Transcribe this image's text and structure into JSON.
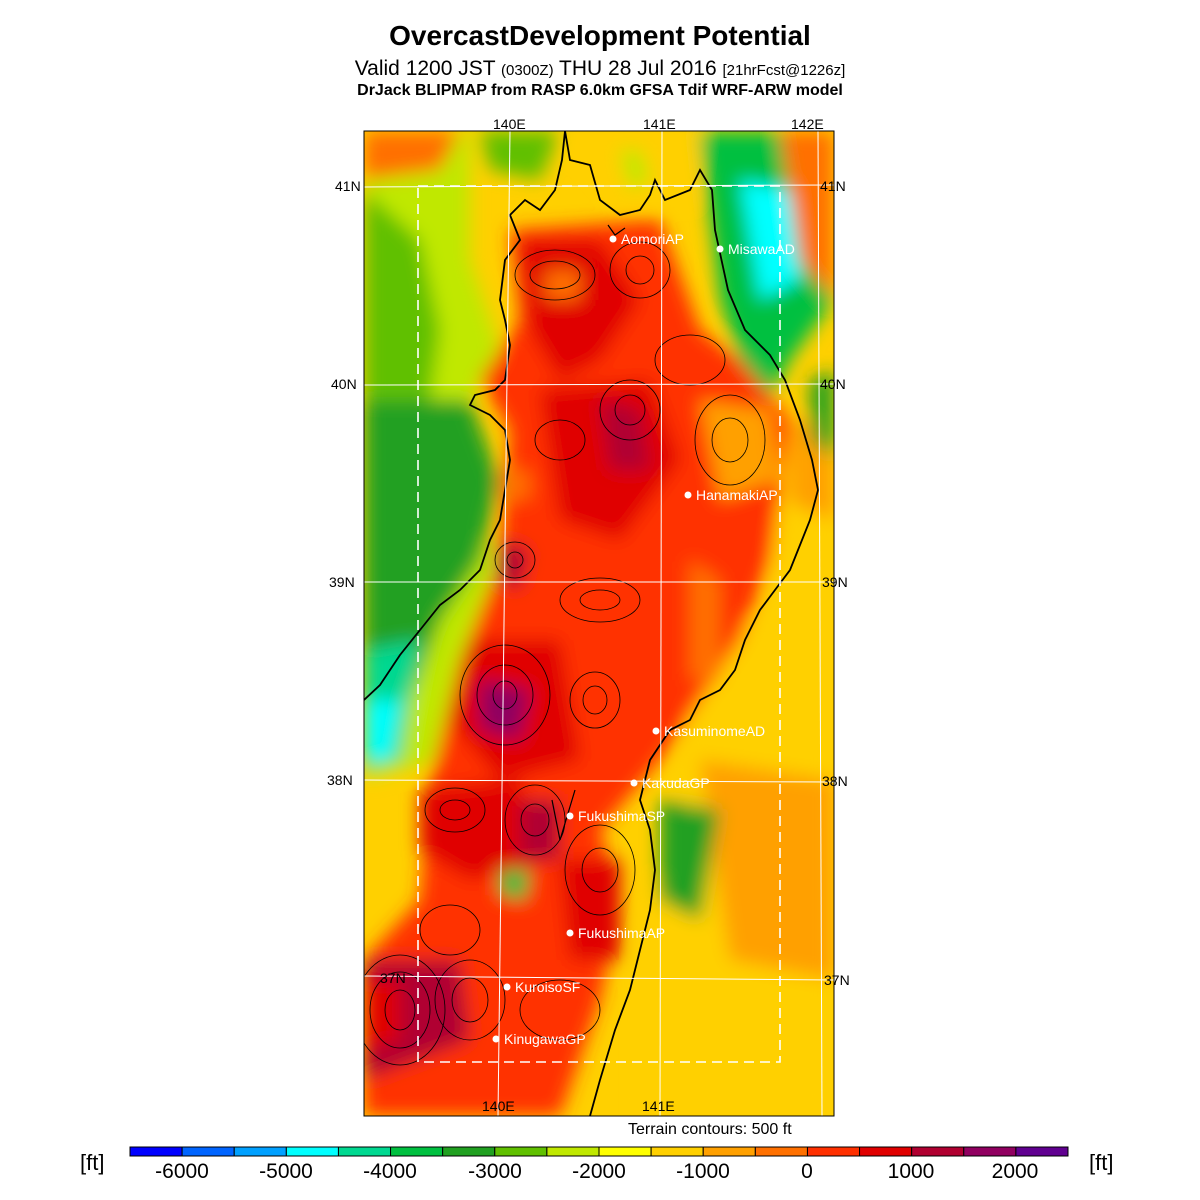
{
  "header": {
    "title": "OvercastDevelopment Potential",
    "valid_main": "Valid 1200 JST",
    "valid_utc": "(0300Z)",
    "valid_date": "THU 28 Jul 2016",
    "forecast_info": "[21hrFcst@1226z]",
    "model": "DrJack BLIPMAP from RASP 6.0km GFSA Tdif WRF-ARW model"
  },
  "map": {
    "lon_labels": [
      "140E",
      "141E",
      "142E"
    ],
    "lat_labels": [
      "41N",
      "40N",
      "39N",
      "38N",
      "37N"
    ],
    "stations": [
      {
        "name": "AomoriAP"
      },
      {
        "name": "MisawaAD"
      },
      {
        "name": "HanamakiAP"
      },
      {
        "name": "KasuminomeAD"
      },
      {
        "name": "KakudaGP"
      },
      {
        "name": "FukushimaSP"
      },
      {
        "name": "FukushimaAP"
      },
      {
        "name": "KuroisoSF"
      },
      {
        "name": "KinugawaGP"
      }
    ],
    "terrain_note": "Terrain contours: 500 ft"
  },
  "colorbar": {
    "unit_label": "[ft]",
    "tick_labels": [
      "-6000",
      "-5000",
      "-4000",
      "-3000",
      "-2000",
      "-1000",
      "0",
      "1000",
      "2000"
    ],
    "colors": [
      "#0000ff",
      "#0064ff",
      "#00a0ff",
      "#00ffff",
      "#00d890",
      "#00c040",
      "#20a020",
      "#60c000",
      "#c0e800",
      "#ffff00",
      "#ffd000",
      "#ffa000",
      "#ff7000",
      "#ff3000",
      "#e00000",
      "#b00030",
      "#900060",
      "#600090"
    ]
  }
}
